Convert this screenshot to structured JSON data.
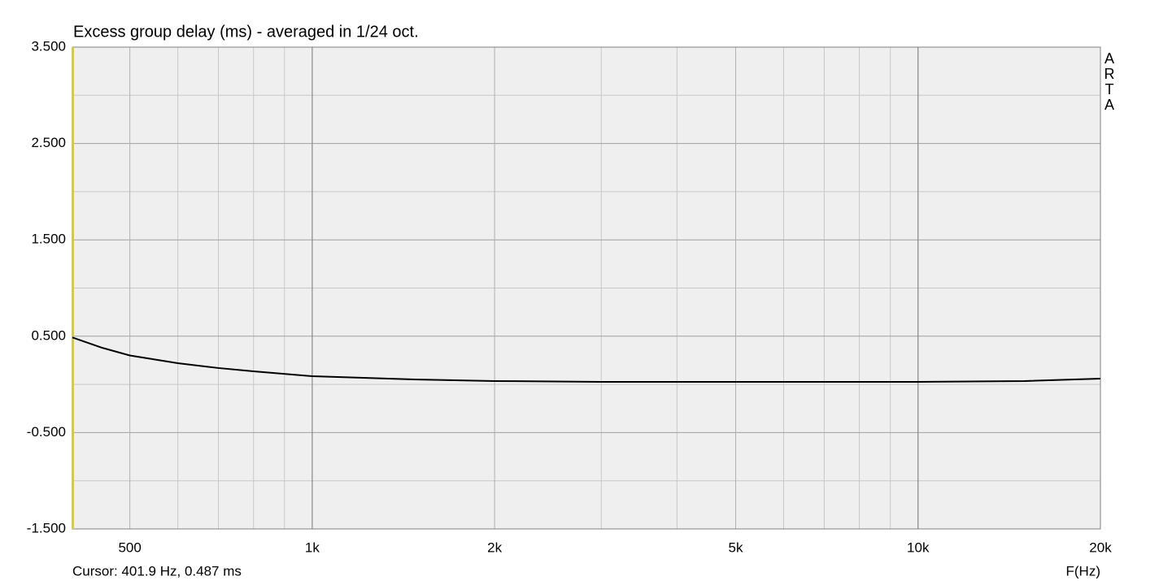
{
  "chart_data": {
    "type": "line",
    "title": "Excess group delay (ms) - averaged in 1/24 oct.",
    "x_label": "F(Hz)",
    "cursor_label": "Cursor: 401.9 Hz, 0.487 ms",
    "watermark": "ARTA",
    "log_x": true,
    "grid": true,
    "x": [
      401.9,
      450,
      500,
      600,
      700,
      800,
      1000,
      1500,
      2000,
      3000,
      5000,
      10000,
      15000,
      20000
    ],
    "series": [
      {
        "name": "Excess group delay",
        "color": "#000000",
        "values": [
          0.487,
          0.38,
          0.3,
          0.22,
          0.17,
          0.136,
          0.085,
          0.05,
          0.035,
          0.026,
          0.026,
          0.026,
          0.035,
          0.06
        ]
      }
    ],
    "xlim": [
      401.9,
      20000
    ],
    "ylim": [
      -1.5,
      3.5
    ],
    "xticks": [
      {
        "value": 500,
        "label": "500"
      },
      {
        "value": 1000,
        "label": "1k"
      },
      {
        "value": 2000,
        "label": "2k"
      },
      {
        "value": 5000,
        "label": "5k"
      },
      {
        "value": 10000,
        "label": "10k"
      },
      {
        "value": 20000,
        "label": "20k"
      }
    ],
    "x_minor_ticks": [
      600,
      700,
      800,
      900,
      3000,
      4000,
      6000,
      7000,
      8000,
      9000
    ],
    "x_major_grid": [
      1000,
      10000
    ],
    "yticks": [
      {
        "value": 3.5,
        "label": "3.500"
      },
      {
        "value": 2.5,
        "label": "2.500"
      },
      {
        "value": 1.5,
        "label": "1.500"
      },
      {
        "value": 0.5,
        "label": "0.500"
      },
      {
        "value": -0.5,
        "label": "-0.500"
      },
      {
        "value": -1.5,
        "label": "-1.500"
      }
    ],
    "y_minor_ticks": [
      3,
      2,
      1,
      0,
      -1
    ]
  }
}
